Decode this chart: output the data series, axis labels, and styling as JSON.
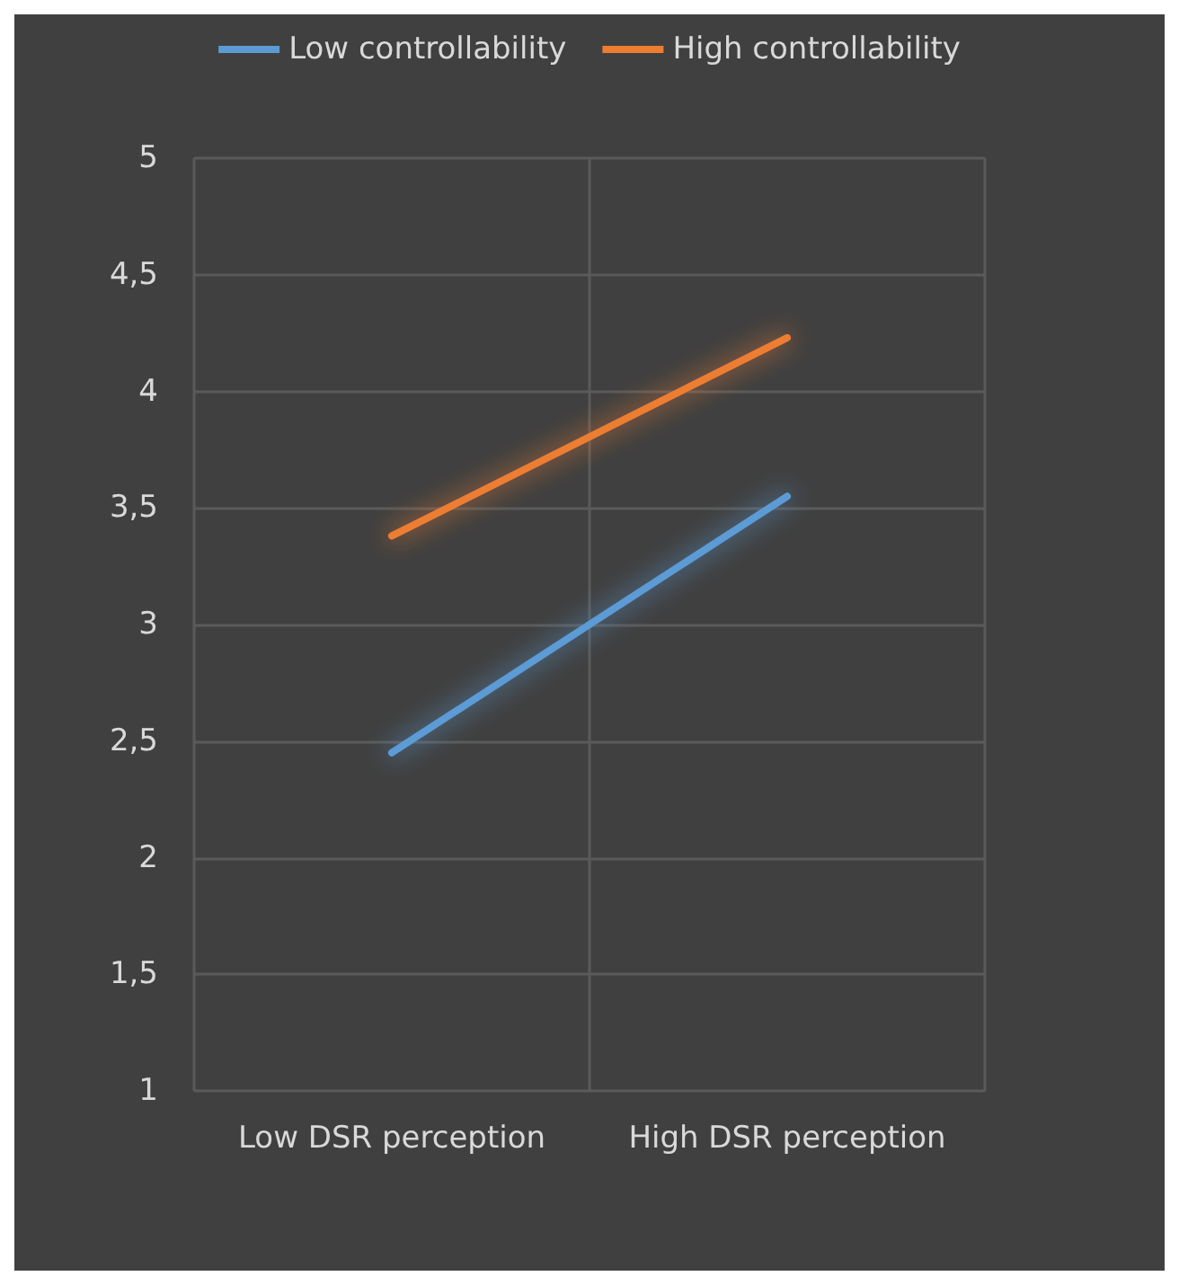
{
  "chart_data": {
    "type": "line",
    "categories": [
      "Low DSR perception",
      "High DSR perception"
    ],
    "series": [
      {
        "name": "Low controllability",
        "color": "#5b9bd5",
        "values": [
          2.45,
          3.55
        ]
      },
      {
        "name": "High controllability",
        "color": "#ed7d31",
        "values": [
          3.38,
          4.23
        ]
      }
    ],
    "ylim": [
      1,
      5
    ],
    "yticks": [
      1,
      {
        "value": 1.5,
        "label": "1,5"
      },
      2,
      {
        "value": 2.5,
        "label": "2,5"
      },
      3,
      {
        "value": 3.5,
        "label": "3,5"
      },
      4,
      {
        "value": 4.5,
        "label": "4,5"
      },
      5
    ],
    "grid": true,
    "legend": "top",
    "marker": "none",
    "line_style": "solid"
  }
}
